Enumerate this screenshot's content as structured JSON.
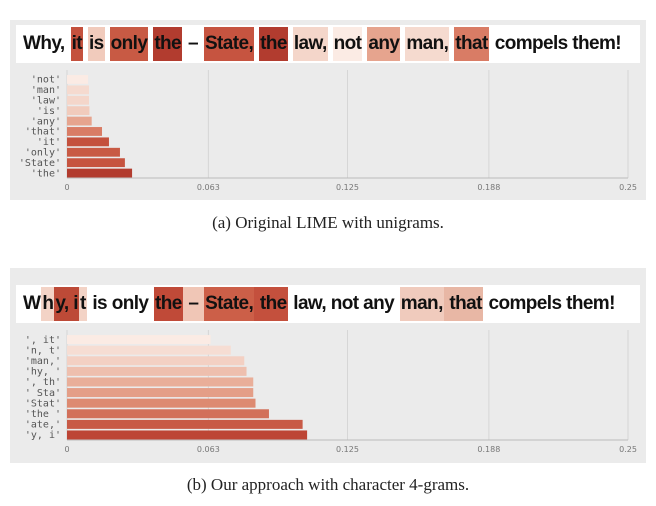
{
  "chart_data": [
    {
      "type": "bar",
      "orientation": "horizontal",
      "sentence": [
        {
          "text": "Why,",
          "color": null
        },
        {
          "text": "it",
          "color": "#c4513d"
        },
        {
          "text": "is",
          "color": "#f1cbbc"
        },
        {
          "text": "only",
          "color": "#c85a44"
        },
        {
          "text": "the",
          "color": "#b23c2f"
        },
        {
          "text": "–",
          "color": null
        },
        {
          "text": "State,",
          "color": "#c65440"
        },
        {
          "text": "the",
          "color": "#b23c2f"
        },
        {
          "text": "law,",
          "color": "#f4d6ca"
        },
        {
          "text": "not",
          "color": "#fbebe4"
        },
        {
          "text": "any",
          "color": "#e6a48e"
        },
        {
          "text": "man,",
          "color": "#f5dacf"
        },
        {
          "text": "that",
          "color": "#d97c65"
        },
        {
          "text": "compels them!",
          "color": null
        }
      ],
      "categories": [
        "'not'",
        "'man'",
        "'law'",
        "'is'",
        "'any'",
        "'that'",
        "'it'",
        "'only'",
        "'State'",
        "'the'"
      ],
      "values": [
        0.0094,
        0.0098,
        0.0098,
        0.01,
        0.011,
        0.0156,
        0.0187,
        0.0236,
        0.0258,
        0.029
      ],
      "colors": [
        "#fbebe4",
        "#f5dacf",
        "#f4d6ca",
        "#f1cbbc",
        "#e6a48e",
        "#d97c65",
        "#c4513d",
        "#c85a44",
        "#c65440",
        "#b23c2f"
      ],
      "xlim": [
        0,
        0.25
      ],
      "xticks": [
        0,
        0.063,
        0.125,
        0.188,
        0.25
      ],
      "grid": true,
      "caption": "(a) Original LIME with unigrams."
    },
    {
      "type": "bar",
      "orientation": "horizontal",
      "sentence": [
        {
          "text": "W",
          "color": null
        },
        {
          "text": "h",
          "color": "#f3d3c6"
        },
        {
          "text": "y, i",
          "color": "#bd4a37"
        },
        {
          "text": "t",
          "color": "#f3d3c6"
        },
        {
          "text": " is only ",
          "color": null
        },
        {
          "text": "the",
          "color": "#c04a38"
        },
        {
          "text": " – ",
          "color": "#f0c6b6"
        },
        {
          "text": "State,",
          "color": "#cc5f48"
        },
        {
          "text": " the",
          "color": "#c4503d"
        },
        {
          "text": " law, not any ",
          "color": null
        },
        {
          "text": "man,",
          "color": "#f0cbbd"
        },
        {
          "text": " that",
          "color": "#e8b7a5"
        },
        {
          "text": " compels them!",
          "color": null
        }
      ],
      "categories": [
        "', it'",
        "'n, t'",
        "'man,'",
        "'hy, '",
        "', th'",
        "' Sta'",
        "'Stat'",
        "'the '",
        "'ate,'",
        "'y, i'"
      ],
      "values": [
        0.064,
        0.073,
        0.079,
        0.08,
        0.083,
        0.083,
        0.084,
        0.09,
        0.105,
        0.107
      ],
      "colors": [
        "#fbebe4",
        "#f6ddd3",
        "#f3d0c3",
        "#eebfae",
        "#e9ae99",
        "#e49e87",
        "#dd8a71",
        "#d2705a",
        "#c85a46",
        "#bd4535"
      ],
      "xlim": [
        0,
        0.25
      ],
      "xticks": [
        0,
        0.063,
        0.125,
        0.188,
        0.25
      ],
      "grid": true,
      "caption": "(b) Our approach with character 4-grams."
    }
  ]
}
